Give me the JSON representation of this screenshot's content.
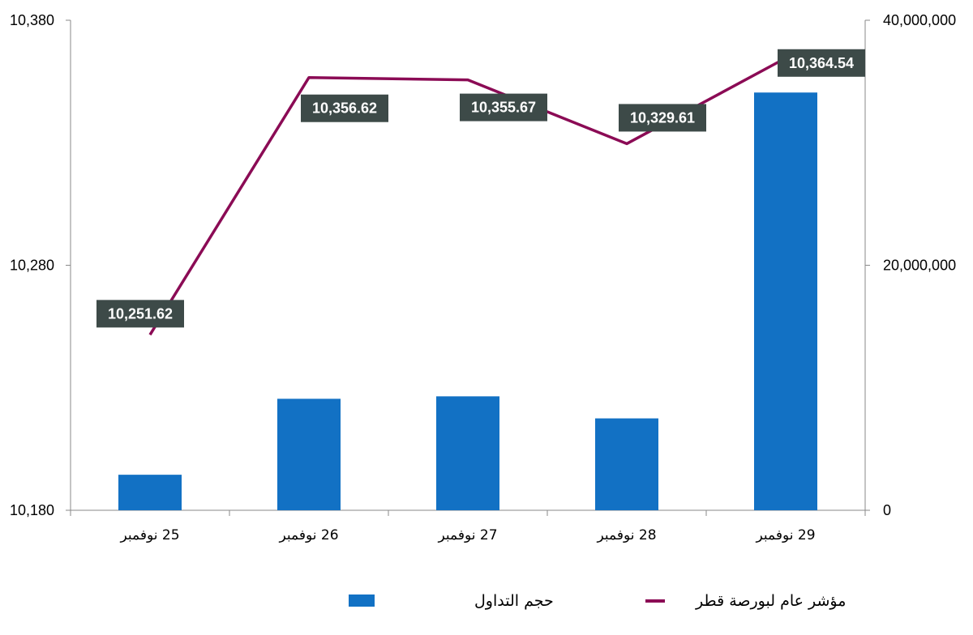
{
  "chart_data": {
    "type": "bar+line",
    "categories": [
      "25 نوفمبر",
      "26 نوفمبر",
      "27 نوفمبر",
      "28 نوفمبر",
      "29 نوفمبر"
    ],
    "series": [
      {
        "name": "حجم التداول",
        "type": "bar",
        "axis": "right",
        "color": "#1271C4",
        "values": [
          2900000,
          9100000,
          9300000,
          7500000,
          34100000
        ]
      },
      {
        "name": "مؤشر عام لبورصة قطر",
        "type": "line",
        "axis": "left",
        "color": "#8B0B55",
        "values": [
          10251.62,
          10356.62,
          10355.67,
          10329.61,
          10364.54
        ],
        "data_labels": [
          "10,251.62",
          "10,356.62",
          "10,355.67",
          "10,329.61",
          "10,364.54"
        ]
      }
    ],
    "y_left": {
      "ylim": [
        10180,
        10380
      ],
      "ticks": [
        "10,180",
        "10,280",
        "10,380"
      ],
      "tick_values": [
        10180,
        10280,
        10380
      ]
    },
    "y_right": {
      "ylim": [
        0,
        40000000
      ],
      "ticks": [
        "0",
        "20,000,000",
        "40,000,000"
      ],
      "tick_values": [
        0,
        20000000,
        40000000
      ]
    },
    "grid": false,
    "legend_placement": "bottom-center",
    "data_label_bg": "#3D4A48"
  }
}
